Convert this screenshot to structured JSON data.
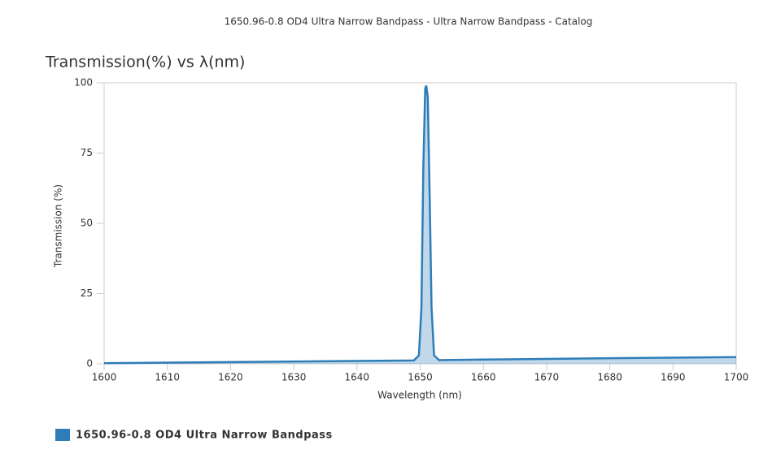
{
  "header": {
    "title": "1650.96-0.8 OD4 Ultra Narrow Bandpass - Ultra Narrow Bandpass - Catalog"
  },
  "chart_data": {
    "type": "area",
    "title": "Transmission(%) vs λ(nm)",
    "x_label": "Wavelength (nm)",
    "y_label": "Transmission (%)",
    "x": [
      1600,
      1620,
      1640,
      1649,
      1649.8,
      1650.2,
      1650.5,
      1650.8,
      1650.96,
      1651.2,
      1651.5,
      1651.8,
      1652.2,
      1653,
      1660,
      1680,
      1700
    ],
    "series": [
      {
        "name": "1650.96-0.8 OD4 Ultra Narrow Bandpass",
        "color": "#2e7db8",
        "values": [
          0.2,
          0.6,
          1.0,
          1.2,
          3,
          20,
          70,
          98,
          99,
          95,
          60,
          20,
          3,
          1.3,
          1.5,
          2,
          2.4
        ]
      }
    ],
    "xlim": [
      1600,
      1700
    ],
    "xticks": [
      1600,
      1610,
      1620,
      1630,
      1640,
      1650,
      1660,
      1670,
      1680,
      1690,
      1700
    ],
    "ylim": [
      0,
      100
    ],
    "yticks": [
      0,
      25,
      50,
      75,
      100
    ],
    "grid": false,
    "legend": "bottom-left"
  }
}
